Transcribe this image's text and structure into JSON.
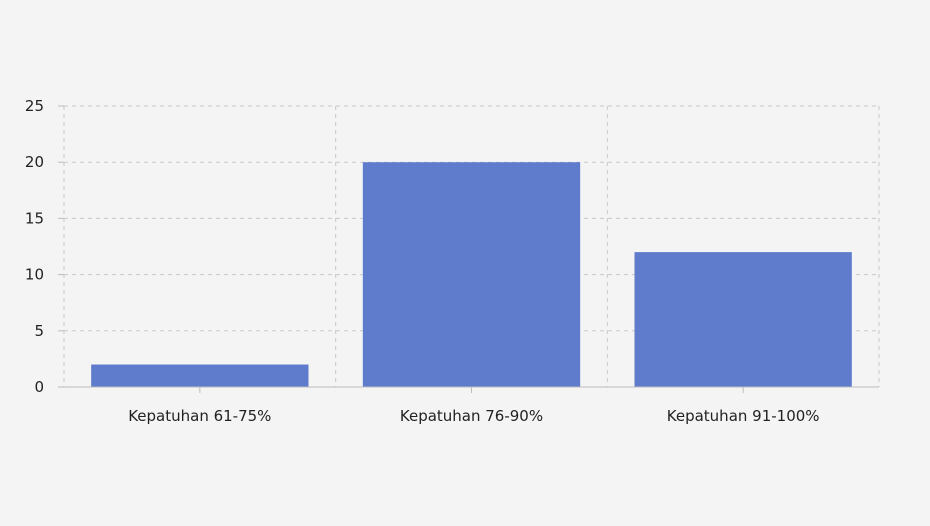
{
  "chart_data": {
    "type": "bar",
    "title": "",
    "xlabel": "",
    "ylabel": "",
    "categories": [
      "Kepatuhan 61-75%",
      "Kepatuhan 76-90%",
      "Kepatuhan 91-100%"
    ],
    "values": [
      2,
      20,
      12
    ],
    "ylim": [
      0,
      25
    ],
    "yticks": [
      0,
      5,
      10,
      15,
      20,
      25
    ],
    "grid": true,
    "legend": "none",
    "bar_color": "#5f7bcb",
    "background_color": "#f4f4f4"
  }
}
